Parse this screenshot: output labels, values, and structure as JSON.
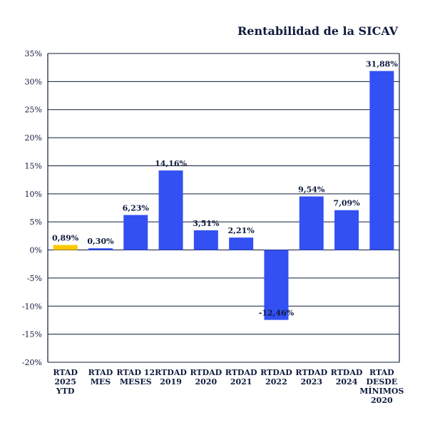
{
  "chart_data": {
    "type": "bar",
    "title": "Rentabilidad de la SICAV",
    "xlabel": "",
    "ylabel": "",
    "ylim": [
      -20,
      35
    ],
    "y_ticks": [
      "35%",
      "30%",
      "25%",
      "20%",
      "15%",
      "10%",
      "5%",
      "0%",
      "-5%",
      "-10%",
      "-15%",
      "-20%"
    ],
    "grid": true,
    "legend": "none",
    "categories": [
      [
        "RTAD",
        "2025",
        "YTD"
      ],
      [
        "RTAD",
        "MES"
      ],
      [
        "RTAD 12",
        "MESES"
      ],
      [
        "RTDAD",
        "2019"
      ],
      [
        "RTDAD",
        "2020"
      ],
      [
        "RTDAD",
        "2021"
      ],
      [
        "RTDAD",
        "2022"
      ],
      [
        "RTDAD",
        "2023"
      ],
      [
        "RTDAD",
        "2024"
      ],
      [
        "RTAD",
        "DESDE",
        "MÍNIMOS",
        "2020"
      ]
    ],
    "values": [
      0.89,
      0.3,
      6.23,
      14.16,
      3.51,
      2.21,
      -12.46,
      9.54,
      7.09,
      31.88
    ],
    "value_labels": [
      "0,89%",
      "0,30%",
      "6,23%",
      "14,16%",
      "3,51%",
      "2,21%",
      "-12,46%",
      "9,54%",
      "7,09%",
      "31,88%"
    ],
    "colors": {
      "highlight": "#ffc700",
      "bar": "#3350f2",
      "grid": "#0f1b3d",
      "text": "#0f1b3d"
    },
    "highlight_index": 0
  }
}
